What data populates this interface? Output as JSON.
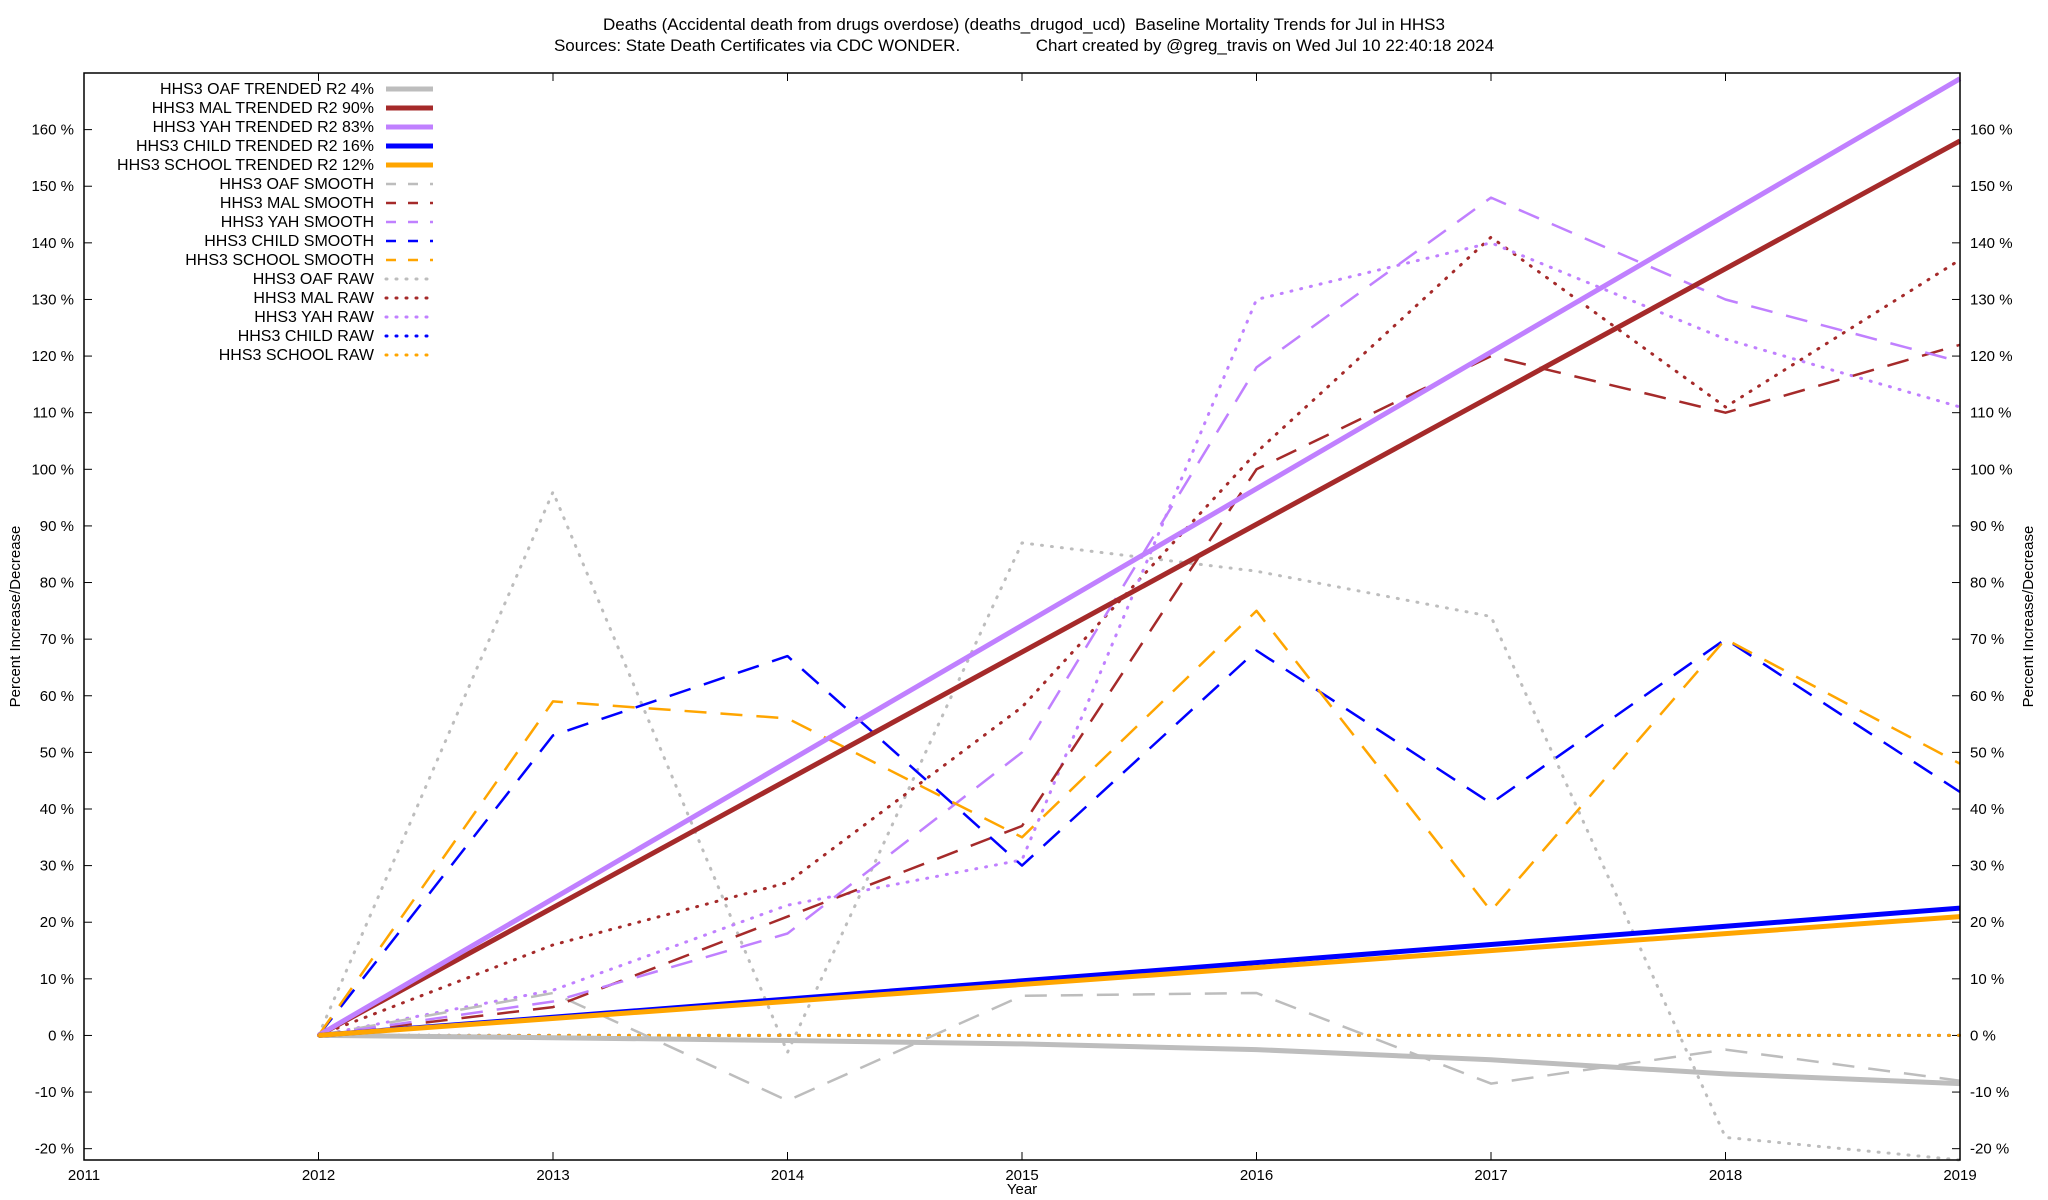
{
  "chart_data": {
    "type": "line",
    "title": "Deaths (Accidental death from drugs overdose) (deaths_drugod_ucd)  Baseline Mortality Trends for Jul in HHS3",
    "subtitle": "Sources: State Death Certificates via CDC WONDER.                Chart created by @greg_travis on Wed Jul 10 22:40:18 2024",
    "xlabel": "Year",
    "ylabel": "Percent Increase/Decrease",
    "xlim": [
      2011,
      2019
    ],
    "ylim": [
      -22,
      170
    ],
    "x_ticks": [
      2011,
      2012,
      2013,
      2014,
      2015,
      2016,
      2017,
      2018,
      2019
    ],
    "y_ticks": [
      -20,
      -10,
      0,
      10,
      20,
      30,
      40,
      50,
      60,
      70,
      80,
      90,
      100,
      110,
      120,
      130,
      140,
      150,
      160
    ],
    "y_tick_suffix": " %",
    "grid": false,
    "legend_position": "top-left",
    "series": [
      {
        "name": "HHS3 OAF TRENDED R2  4%",
        "color": "#bdbdbd",
        "style": "solid",
        "x": [
          2012,
          2013,
          2014,
          2015,
          2016,
          2017,
          2018,
          2019
        ],
        "values": [
          0,
          -0.4,
          -0.9,
          -1.5,
          -2.5,
          -4.3,
          -6.8,
          -8.5
        ]
      },
      {
        "name": "HHS3 MAL TRENDED R2  90%",
        "color": "#a52a2a",
        "style": "solid",
        "x": [
          2012,
          2019
        ],
        "values": [
          0,
          158
        ]
      },
      {
        "name": "HHS3 YAH TRENDED R2  83%",
        "color": "#c080ff",
        "style": "solid",
        "x": [
          2012,
          2019
        ],
        "values": [
          0,
          169
        ]
      },
      {
        "name": "HHS3 CHILD TRENDED R2  16%",
        "color": "#0000ff",
        "style": "solid",
        "x": [
          2012,
          2019
        ],
        "values": [
          0,
          22.5
        ]
      },
      {
        "name": "HHS3 SCHOOL TRENDED R2  12%",
        "color": "#ffa500",
        "style": "solid",
        "x": [
          2012,
          2019
        ],
        "values": [
          0,
          21
        ]
      },
      {
        "name": "HHS3 OAF SMOOTH",
        "color": "#bdbdbd",
        "style": "dashed",
        "x": [
          2012,
          2013,
          2014,
          2015,
          2016,
          2017,
          2018,
          2019
        ],
        "values": [
          0,
          7.5,
          -11.5,
          7,
          7.5,
          -8.5,
          -2.5,
          -8
        ]
      },
      {
        "name": "HHS3 MAL SMOOTH",
        "color": "#a52a2a",
        "style": "dashed",
        "x": [
          2012,
          2013,
          2014,
          2015,
          2016,
          2017,
          2018,
          2019
        ],
        "values": [
          0,
          5,
          21,
          37,
          100,
          120,
          110,
          122
        ]
      },
      {
        "name": "HHS3 YAH SMOOTH",
        "color": "#c080ff",
        "style": "dashed",
        "x": [
          2012,
          2013,
          2014,
          2015,
          2016,
          2017,
          2018,
          2019
        ],
        "values": [
          0,
          6,
          18,
          50,
          118,
          148,
          130,
          119
        ]
      },
      {
        "name": "HHS3 CHILD SMOOTH",
        "color": "#0000ff",
        "style": "dashed",
        "x": [
          2012,
          2013,
          2014,
          2015,
          2016,
          2017,
          2018,
          2019
        ],
        "values": [
          0,
          53,
          67,
          30,
          68,
          41,
          70,
          43
        ]
      },
      {
        "name": "HHS3 SCHOOL SMOOTH",
        "color": "#ffa500",
        "style": "dashed",
        "x": [
          2012,
          2013,
          2014,
          2015,
          2016,
          2017,
          2018,
          2019
        ],
        "values": [
          0,
          59,
          56,
          35,
          75,
          22,
          70,
          48
        ]
      },
      {
        "name": "HHS3 OAF RAW",
        "color": "#bdbdbd",
        "style": "dotted",
        "x": [
          2012,
          2013,
          2014,
          2015,
          2016,
          2017,
          2018,
          2019
        ],
        "values": [
          0,
          96,
          -3,
          87,
          82,
          74,
          -18,
          -22
        ]
      },
      {
        "name": "HHS3 MAL RAW",
        "color": "#a52a2a",
        "style": "dotted",
        "x": [
          2012,
          2013,
          2014,
          2015,
          2016,
          2017,
          2018,
          2019
        ],
        "values": [
          0,
          16,
          27,
          58,
          103,
          141,
          111,
          137
        ]
      },
      {
        "name": "HHS3 YAH RAW",
        "color": "#c080ff",
        "style": "dotted",
        "x": [
          2012,
          2013,
          2014,
          2015,
          2016,
          2017,
          2018,
          2019
        ],
        "values": [
          0,
          8,
          23,
          31,
          130,
          140,
          123,
          111
        ]
      },
      {
        "name": "HHS3 CHILD RAW",
        "color": "#0000ff",
        "style": "dotted",
        "x": [
          2012,
          2013,
          2014,
          2015,
          2016,
          2017,
          2018,
          2019
        ],
        "values": [
          0,
          0,
          0,
          0,
          0,
          0,
          0,
          0
        ]
      },
      {
        "name": "HHS3 SCHOOL RAW",
        "color": "#ffa500",
        "style": "dotted",
        "x": [
          2012,
          2013,
          2014,
          2015,
          2016,
          2017,
          2018,
          2019
        ],
        "values": [
          0,
          0,
          0,
          0,
          0,
          0,
          0,
          0
        ]
      }
    ]
  }
}
